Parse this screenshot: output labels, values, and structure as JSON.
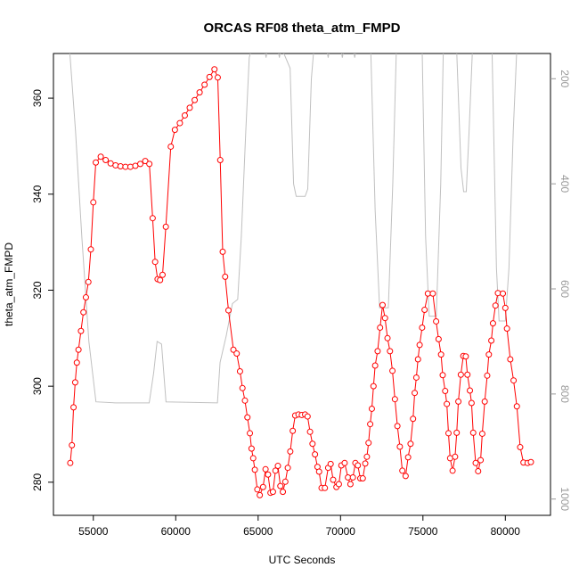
{
  "chart_data": {
    "type": "line",
    "title": "ORCAS RF08 theta_atm_FMPD",
    "x_label": "UTC Seconds",
    "y_label": "theta_atm_FMPD",
    "xlim": [
      52580,
      82740
    ],
    "xticks": [
      55000,
      60000,
      65000,
      70000,
      75000,
      80000
    ],
    "ylim": [
      273.1,
      369.3
    ],
    "yticks": [
      280,
      300,
      320,
      340,
      360
    ],
    "y2lim": [
      1031,
      152
    ],
    "y2ticks": [
      200,
      400,
      600,
      800,
      1000
    ],
    "series": [
      {
        "color": "#ff0000",
        "markers": true,
        "x": [
          53600,
          53700,
          53800,
          53900,
          54000,
          54100,
          54250,
          54400,
          54550,
          54700,
          54850,
          55000,
          55150,
          55450,
          55750,
          56050,
          56350,
          56650,
          56950,
          57250,
          57550,
          57850,
          58150,
          58400,
          58600,
          58750,
          58900,
          59050,
          59200,
          59400,
          59700,
          59950,
          60250,
          60550,
          60850,
          61150,
          61450,
          61750,
          62050,
          62350,
          62550,
          62700,
          62850,
          63000,
          63200,
          63500,
          63700,
          63900,
          64050,
          64200,
          64350,
          64500,
          64600,
          64700,
          64800,
          64950,
          65100,
          65300,
          65450,
          65600,
          65750,
          65900,
          66050,
          66200,
          66350,
          66500,
          66650,
          66800,
          66950,
          67100,
          67250,
          67450,
          67650,
          67850,
          68000,
          68150,
          68300,
          68450,
          68600,
          68700,
          68850,
          69050,
          69250,
          69400,
          69550,
          69750,
          69900,
          70050,
          70250,
          70450,
          70600,
          70750,
          70900,
          71050,
          71200,
          71350,
          71500,
          71600,
          71700,
          71800,
          71900,
          72000,
          72100,
          72250,
          72400,
          72550,
          72700,
          72850,
          73000,
          73150,
          73300,
          73450,
          73600,
          73750,
          73950,
          74100,
          74250,
          74400,
          74500,
          74600,
          74700,
          74800,
          74950,
          75100,
          75300,
          75600,
          75800,
          75950,
          76100,
          76200,
          76350,
          76450,
          76550,
          76650,
          76800,
          76950,
          77050,
          77150,
          77300,
          77450,
          77600,
          77700,
          77850,
          77950,
          78050,
          78200,
          78350,
          78500,
          78600,
          78750,
          78900,
          79000,
          79150,
          79250,
          79400,
          79550,
          79850,
          80000,
          80100,
          80300,
          80500,
          80700,
          80900,
          81100,
          81350,
          81550
        ],
        "values": [
          284.0,
          287.7,
          295.6,
          300.8,
          304.9,
          307.6,
          311.5,
          315.4,
          318.5,
          321.7,
          328.5,
          338.3,
          346.6,
          347.8,
          347.1,
          346.4,
          346.0,
          345.8,
          345.7,
          345.7,
          345.9,
          346.3,
          346.9,
          346.3,
          335.0,
          325.9,
          322.3,
          322.1,
          323.2,
          333.2,
          349.9,
          353.4,
          354.8,
          356.4,
          358.0,
          359.6,
          361.2,
          362.8,
          364.4,
          366.0,
          364.3,
          347.1,
          328.0,
          322.8,
          315.8,
          307.6,
          306.8,
          303.1,
          299.6,
          297.0,
          293.5,
          290.2,
          287.0,
          285.0,
          282.6,
          278.5,
          277.3,
          279.0,
          282.7,
          281.6,
          277.8,
          278.0,
          282.4,
          283.4,
          279.2,
          278.0,
          280.1,
          283.0,
          286.4,
          290.7,
          293.9,
          294.1,
          294.0,
          294.1,
          293.7,
          290.5,
          288.0,
          285.8,
          283.2,
          282.2,
          278.8,
          278.8,
          283.0,
          283.8,
          280.5,
          279.0,
          279.6,
          283.5,
          284.0,
          281.0,
          279.6,
          281.0,
          284.0,
          283.5,
          280.8,
          280.8,
          283.9,
          285.3,
          288.2,
          292.1,
          295.3,
          300.0,
          304.3,
          307.3,
          312.2,
          316.9,
          314.2,
          310.0,
          307.3,
          303.2,
          297.3,
          291.7,
          287.4,
          282.4,
          281.3,
          285.2,
          288.0,
          293.2,
          298.6,
          301.8,
          305.6,
          308.6,
          312.2,
          315.9,
          319.3,
          319.3,
          313.5,
          309.8,
          306.6,
          302.3,
          299.0,
          296.3,
          290.2,
          285.0,
          282.4,
          285.3,
          290.3,
          296.8,
          302.4,
          306.3,
          306.2,
          302.4,
          299.1,
          296.5,
          290.3,
          284.0,
          282.3,
          284.6,
          290.1,
          296.8,
          302.2,
          306.6,
          309.5,
          313.1,
          316.8,
          319.4,
          319.3,
          316.3,
          312.0,
          305.6,
          301.2,
          295.8,
          287.3,
          284.1,
          284.0,
          284.2
        ]
      },
      {
        "color": "#c0c0c0",
        "axis": "y2",
        "markers": false,
        "x": [
          53550,
          53920,
          54300,
          54730,
          55160,
          56340,
          58390,
          58660,
          58870,
          59140,
          59410,
          62530,
          62690,
          63060,
          63440,
          63760,
          63980,
          64250,
          64460,
          64620,
          65380,
          65480,
          65590,
          66180,
          66290,
          66400,
          66940,
          67150,
          67310,
          67850,
          68010,
          68230,
          68390,
          69140,
          69250,
          69350,
          70000,
          70110,
          70220,
          70750,
          70860,
          70970,
          71830,
          72100,
          72370,
          72900,
          73170,
          73390,
          74950,
          75160,
          75380,
          75810,
          76080,
          76240,
          77040,
          77310,
          77470,
          77630,
          77800,
          78010,
          79190,
          79460,
          79620,
          80000,
          80220,
          80480,
          80700,
          81650
        ],
        "values": [
          140,
          300,
          500,
          700,
          815,
          817,
          817,
          760,
          700,
          705,
          815,
          817,
          740,
          690,
          628,
          620,
          500,
          300,
          160,
          140,
          140,
          160,
          140,
          140,
          160,
          140,
          180,
          400,
          424,
          424,
          410,
          200,
          140,
          140,
          160,
          140,
          140,
          160,
          140,
          140,
          160,
          140,
          140,
          450,
          636,
          636,
          400,
          140,
          140,
          500,
          652,
          652,
          400,
          140,
          140,
          370,
          415,
          415,
          300,
          140,
          140,
          560,
          661,
          661,
          560,
          300,
          140,
          140
        ]
      }
    ]
  }
}
